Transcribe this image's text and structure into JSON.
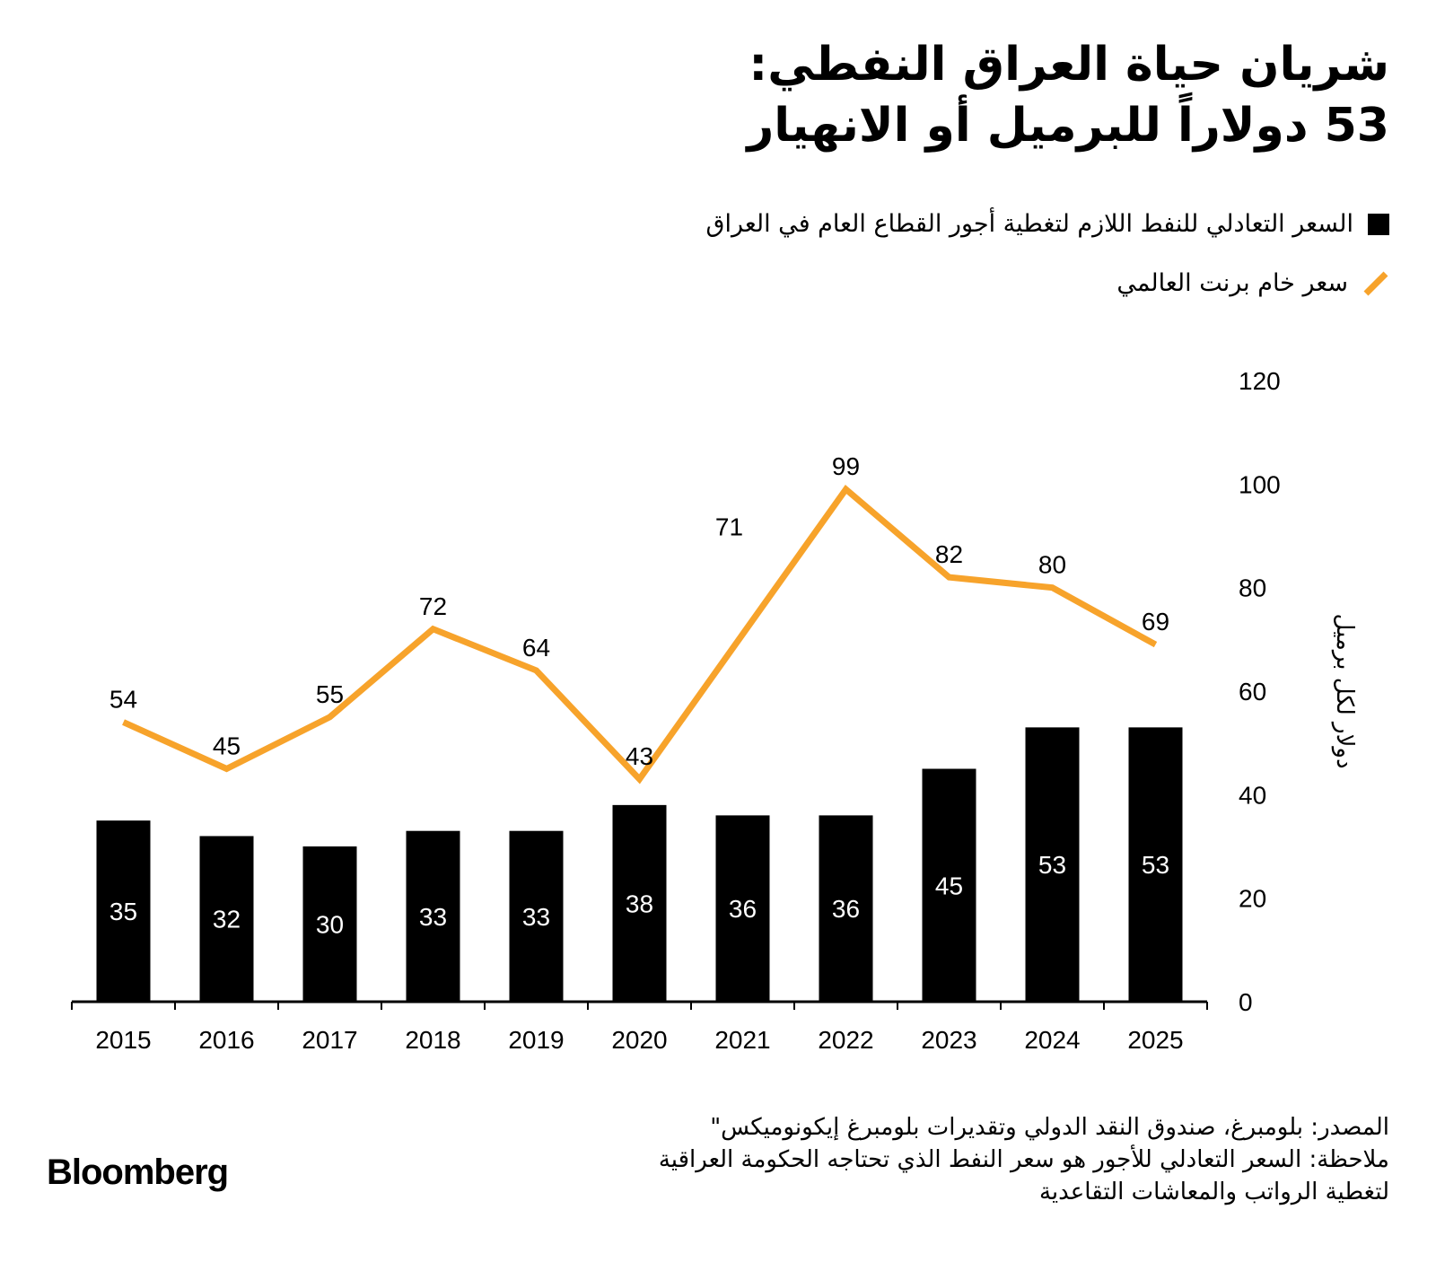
{
  "title_line1": "شريان حياة العراق النفطي:",
  "title_line2": "53 دولاراً للبرميل أو الانهيار",
  "colors": {
    "bar": "#000000",
    "line": "#F7A32B"
  },
  "chart_data": {
    "type": "bar+line",
    "categories": [
      "2015",
      "2016",
      "2017",
      "2018",
      "2019",
      "2020",
      "2021",
      "2022",
      "2023",
      "2024",
      "2025"
    ],
    "series": [
      {
        "name": "السعر التعادلي للنفط اللازم لتغطية أجور القطاع العام في العراق",
        "type": "bar",
        "values": [
          35,
          32,
          30,
          33,
          33,
          38,
          36,
          36,
          45,
          53,
          53
        ]
      },
      {
        "name": "سعر خام برنت العالمي",
        "type": "line",
        "values": [
          54,
          45,
          55,
          72,
          64,
          43,
          71,
          99,
          82,
          80,
          69
        ]
      }
    ],
    "ylabel": "دولار لكل برميل",
    "ylim": [
      0,
      120
    ],
    "yticks": [
      0,
      20,
      40,
      60,
      80,
      100,
      120
    ],
    "yaxis_side": "right",
    "grid": false,
    "legend_placement": "top-right"
  },
  "footer": {
    "source": "المصدر: بلومبرغ، صندوق النقد الدولي وتقديرات بلومبرغ إيكونوميكس\"",
    "note_line1": "ملاحظة: السعر التعادلي للأجور هو سعر النفط الذي تحتاجه الحكومة العراقية",
    "note_line2": "لتغطية الرواتب والمعاشات التقاعدية"
  },
  "logo": "Bloomberg"
}
